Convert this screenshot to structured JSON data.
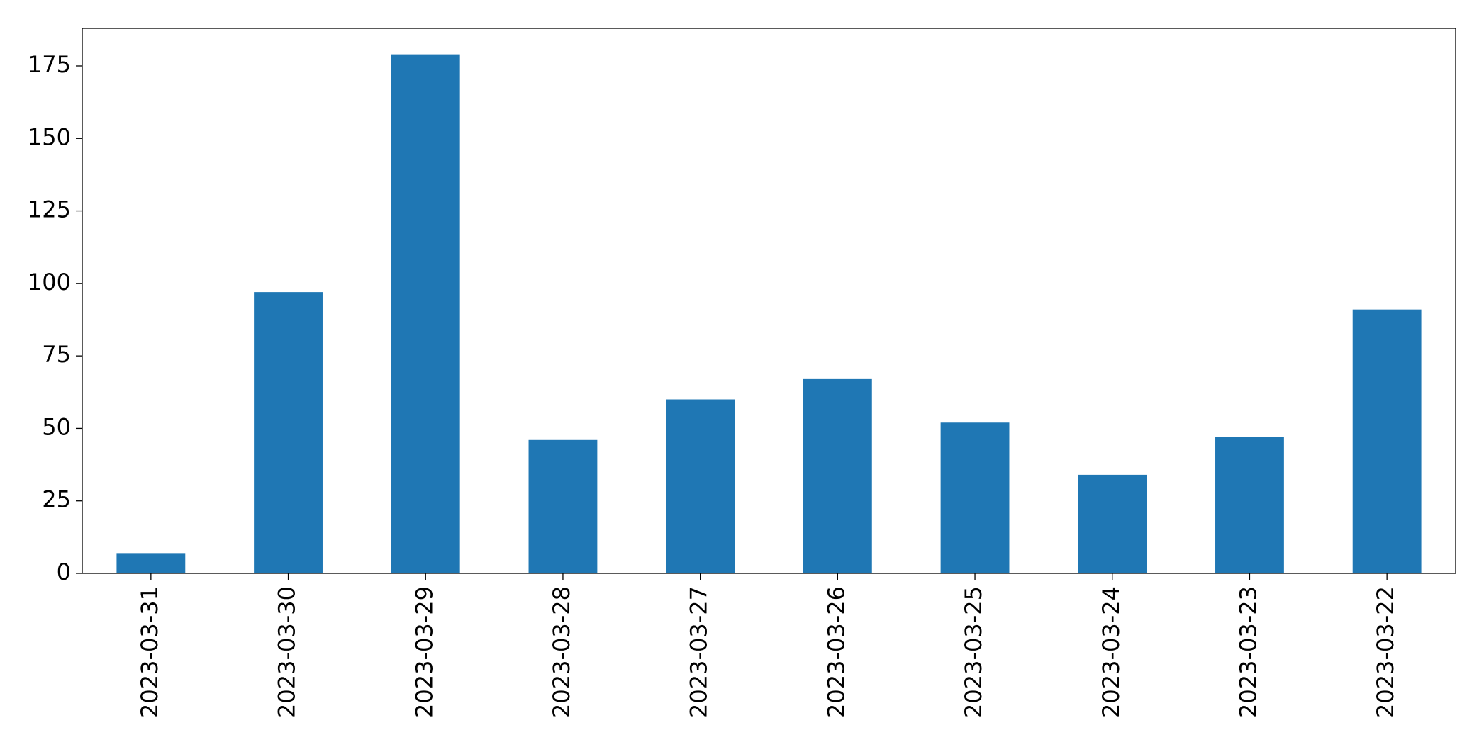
{
  "chart_data": {
    "type": "bar",
    "categories": [
      "2023-03-31",
      "2023-03-30",
      "2023-03-29",
      "2023-03-28",
      "2023-03-27",
      "2023-03-26",
      "2023-03-25",
      "2023-03-24",
      "2023-03-23",
      "2023-03-22"
    ],
    "values": [
      7,
      97,
      179,
      46,
      60,
      67,
      52,
      34,
      47,
      91
    ],
    "color": "#1f77b4",
    "ylim": [
      0,
      187.95
    ],
    "yticks": [
      0,
      25,
      50,
      75,
      100,
      125,
      150,
      175
    ],
    "grid": false
  }
}
